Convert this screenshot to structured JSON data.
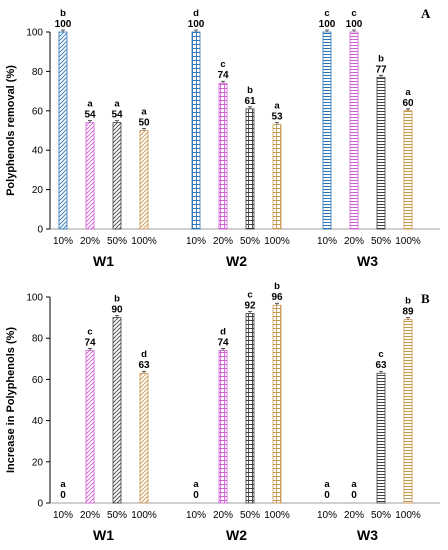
{
  "chart_data": [
    {
      "type": "bar",
      "panel_label": "A",
      "ylabel": "Polyphenols removal (%)",
      "ylim": [
        0,
        100
      ],
      "yticks": [
        "0",
        "20",
        "40",
        "60",
        "80",
        "100"
      ],
      "grid": false,
      "groups": [
        {
          "name": "W1",
          "bars": [
            {
              "category": "10%",
              "value": 100,
              "label": "100",
              "letter": "b",
              "pattern": "diag-blue"
            },
            {
              "category": "20%",
              "value": 54,
              "label": "54",
              "letter": "a",
              "pattern": "diag-pink"
            },
            {
              "category": "50%",
              "value": 54,
              "label": "54",
              "letter": "a",
              "pattern": "diag-gray"
            },
            {
              "category": "100%",
              "value": 50,
              "label": "50",
              "letter": "a",
              "pattern": "diag-orange"
            }
          ]
        },
        {
          "name": "W2",
          "bars": [
            {
              "category": "10%",
              "value": 100,
              "label": "100",
              "letter": "d",
              "pattern": "grid-blue"
            },
            {
              "category": "20%",
              "value": 74,
              "label": "74",
              "letter": "c",
              "pattern": "grid-pink"
            },
            {
              "category": "50%",
              "value": 61,
              "label": "61",
              "letter": "b",
              "pattern": "grid-gray"
            },
            {
              "category": "100%",
              "value": 53,
              "label": "53",
              "letter": "a",
              "pattern": "grid-orange"
            }
          ]
        },
        {
          "name": "W3",
          "bars": [
            {
              "category": "10%",
              "value": 100,
              "label": "100",
              "letter": "c",
              "pattern": "horiz-blue"
            },
            {
              "category": "20%",
              "value": 100,
              "label": "100",
              "letter": "c",
              "pattern": "horiz-pink"
            },
            {
              "category": "50%",
              "value": 77,
              "label": "77",
              "letter": "b",
              "pattern": "horiz-gray"
            },
            {
              "category": "100%",
              "value": 60,
              "label": "60",
              "letter": "a",
              "pattern": "horiz-orange"
            }
          ]
        }
      ]
    },
    {
      "type": "bar",
      "panel_label": "B",
      "ylabel": "Increase in Polyphenols (%)",
      "ylim": [
        0,
        100
      ],
      "yticks": [
        "0",
        "20",
        "40",
        "60",
        "80",
        "100"
      ],
      "grid": false,
      "groups": [
        {
          "name": "W1",
          "bars": [
            {
              "category": "10%",
              "value": 0,
              "label": "0",
              "letter": "a",
              "pattern": "diag-blue"
            },
            {
              "category": "20%",
              "value": 74,
              "label": "74",
              "letter": "c",
              "pattern": "diag-pink"
            },
            {
              "category": "50%",
              "value": 90,
              "label": "90",
              "letter": "b",
              "pattern": "diag-gray"
            },
            {
              "category": "100%",
              "value": 63,
              "label": "63",
              "letter": "d",
              "pattern": "diag-orange"
            }
          ]
        },
        {
          "name": "W2",
          "bars": [
            {
              "category": "10%",
              "value": 0,
              "label": "0",
              "letter": "a",
              "pattern": "grid-blue"
            },
            {
              "category": "20%",
              "value": 74,
              "label": "74",
              "letter": "d",
              "pattern": "grid-pink"
            },
            {
              "category": "50%",
              "value": 92,
              "label": "92",
              "letter": "c",
              "pattern": "grid-gray"
            },
            {
              "category": "100%",
              "value": 96,
              "label": "96",
              "letter": "b",
              "pattern": "grid-orange"
            }
          ]
        },
        {
          "name": "W3",
          "bars": [
            {
              "category": "10%",
              "value": 0,
              "label": "0",
              "letter": "a",
              "pattern": "horiz-blue"
            },
            {
              "category": "20%",
              "value": 0,
              "label": "0",
              "letter": "a",
              "pattern": "horiz-pink"
            },
            {
              "category": "50%",
              "value": 63,
              "label": "63",
              "letter": "c",
              "pattern": "horiz-gray"
            },
            {
              "category": "100%",
              "value": 89,
              "label": "89",
              "letter": "b",
              "pattern": "horiz-orange"
            }
          ]
        }
      ]
    }
  ],
  "colors": {
    "blue": "#2e75b6",
    "pink": "#d35fd6",
    "gray": "#404040",
    "orange": "#c89850",
    "axis": "#000000"
  }
}
